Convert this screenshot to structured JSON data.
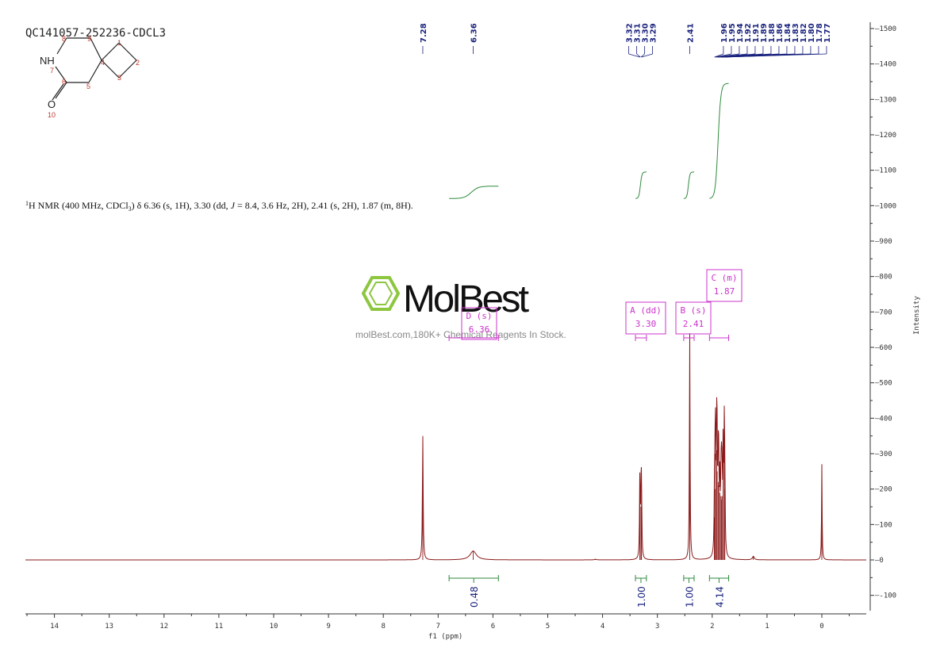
{
  "sample_id": "QC141057-252236-CDCL3",
  "nmr_summary": {
    "nucleus_sup": "1",
    "text_a": "H NMR (400 MHz, CDCl",
    "text_sub": "3",
    "text_b": ") δ 6.36 (s, 1H), 3.30 (dd, ",
    "text_j": "J",
    "text_c": " = 8.4, 3.6 Hz, 2H), 2.41 (s, 2H), 1.87 (m, 8H)."
  },
  "structure": {
    "atoms": [
      {
        "id": "8",
        "label": "8"
      },
      {
        "id": "9",
        "label": "9"
      },
      {
        "id": "1",
        "label": "1"
      },
      {
        "id": "NH",
        "label": "NH"
      },
      {
        "id": "7",
        "label": "7"
      },
      {
        "id": "4",
        "label": "4"
      },
      {
        "id": "2",
        "label": "2"
      },
      {
        "id": "6",
        "label": "6"
      },
      {
        "id": "5",
        "label": "5"
      },
      {
        "id": "3",
        "label": "3"
      },
      {
        "id": "O",
        "label": "O"
      },
      {
        "id": "10",
        "label": "10"
      }
    ]
  },
  "watermark": {
    "brand": "MolBest",
    "tagline": "molBest.com,180K+ Chemical Reagents In Stock.",
    "color": "#8dc63f"
  },
  "right_axis_label": "Intensity",
  "colors": {
    "spectrum": "#8b1a1a",
    "integral": "#2e8b3d",
    "multiplet_box": "#cc33cc",
    "peak_label": "#1a237e",
    "axis": "#333333"
  },
  "chart_data": {
    "type": "line",
    "xlabel": "f1 (ppm)",
    "xlim": [
      14.5,
      -0.8
    ],
    "x_ticks": [
      14,
      13,
      12,
      11,
      10,
      9,
      8,
      7,
      6,
      5,
      4,
      3,
      2,
      1,
      0
    ],
    "ylabel": "Intensity",
    "ylim": [
      -150,
      1500
    ],
    "y_ticks": [
      1500,
      1400,
      1300,
      1200,
      1100,
      1000,
      900,
      800,
      700,
      600,
      500,
      400,
      300,
      200,
      100,
      0,
      -100
    ],
    "peaks": [
      {
        "ppm": 7.28,
        "height": 350,
        "width": 0.008
      },
      {
        "ppm": 6.36,
        "height": 25,
        "width": 0.07
      },
      {
        "ppm": 4.13,
        "height": 2,
        "width": 0.02
      },
      {
        "ppm": 3.32,
        "height": 230,
        "width": 0.007
      },
      {
        "ppm": 3.3,
        "height": 150,
        "width": 0.007
      },
      {
        "ppm": 3.29,
        "height": 200,
        "width": 0.007
      },
      {
        "ppm": 2.41,
        "height": 640,
        "width": 0.007
      },
      {
        "ppm": 1.96,
        "height": 120,
        "width": 0.007
      },
      {
        "ppm": 1.95,
        "height": 200,
        "width": 0.007
      },
      {
        "ppm": 1.94,
        "height": 300,
        "width": 0.007
      },
      {
        "ppm": 1.92,
        "height": 310,
        "width": 0.007
      },
      {
        "ppm": 1.91,
        "height": 250,
        "width": 0.007
      },
      {
        "ppm": 1.89,
        "height": 220,
        "width": 0.007
      },
      {
        "ppm": 1.88,
        "height": 210,
        "width": 0.007
      },
      {
        "ppm": 1.86,
        "height": 190,
        "width": 0.007
      },
      {
        "ppm": 1.84,
        "height": 180,
        "width": 0.007
      },
      {
        "ppm": 1.83,
        "height": 170,
        "width": 0.007
      },
      {
        "ppm": 1.82,
        "height": 180,
        "width": 0.007
      },
      {
        "ppm": 1.8,
        "height": 300,
        "width": 0.007
      },
      {
        "ppm": 1.78,
        "height": 320,
        "width": 0.007
      },
      {
        "ppm": 1.77,
        "height": 200,
        "width": 0.007
      },
      {
        "ppm": 1.25,
        "height": 10,
        "width": 0.02
      },
      {
        "ppm": 0.0,
        "height": 270,
        "width": 0.006
      }
    ],
    "peak_labels": [
      "7.28",
      "6.36",
      "3.32",
      "3.31",
      "3.30",
      "3.29",
      "2.41",
      "1.96",
      "1.95",
      "1.94",
      "1.92",
      "1.91",
      "1.89",
      "1.88",
      "1.86",
      "1.84",
      "1.83",
      "1.82",
      "1.80",
      "1.78",
      "1.77"
    ],
    "peak_label_groups": [
      {
        "labels": [
          "7.28"
        ],
        "ppm": [
          7.28
        ]
      },
      {
        "labels": [
          "6.36"
        ],
        "ppm": [
          6.36
        ]
      },
      {
        "labels": [
          "3.32",
          "3.31",
          "3.30",
          "3.29"
        ],
        "ppm": [
          3.32,
          3.31,
          3.3,
          3.29
        ]
      },
      {
        "labels": [
          "2.41"
        ],
        "ppm": [
          2.41
        ]
      },
      {
        "labels": [
          "1.96",
          "1.95",
          "1.94",
          "1.92",
          "1.91",
          "1.89",
          "1.88",
          "1.86",
          "1.84",
          "1.83",
          "1.82",
          "1.80",
          "1.78",
          "1.77"
        ],
        "ppm": [
          1.96,
          1.95,
          1.94,
          1.92,
          1.91,
          1.89,
          1.88,
          1.86,
          1.84,
          1.83,
          1.82,
          1.8,
          1.78,
          1.77
        ]
      }
    ],
    "integrals": [
      {
        "from": 6.8,
        "to": 5.9,
        "value": "0.48",
        "start": 1020,
        "end": 1055
      },
      {
        "from": 3.4,
        "to": 3.2,
        "value": "1.00",
        "start": 1020,
        "end": 1095
      },
      {
        "from": 2.52,
        "to": 2.33,
        "value": "1.00",
        "start": 1020,
        "end": 1095
      },
      {
        "from": 2.05,
        "to": 1.7,
        "value": "4.14",
        "start": 1020,
        "end": 1345
      }
    ],
    "multiplets": [
      {
        "letter": "D (s)",
        "shift": "6.36",
        "from": 6.8,
        "to": 5.9
      },
      {
        "letter": "A (dd)",
        "shift": "3.30",
        "from": 3.4,
        "to": 3.2
      },
      {
        "letter": "B (s)",
        "shift": "2.41",
        "from": 2.52,
        "to": 2.33
      },
      {
        "letter": "C (m)",
        "shift": "1.87",
        "from": 2.05,
        "to": 1.7
      }
    ]
  }
}
